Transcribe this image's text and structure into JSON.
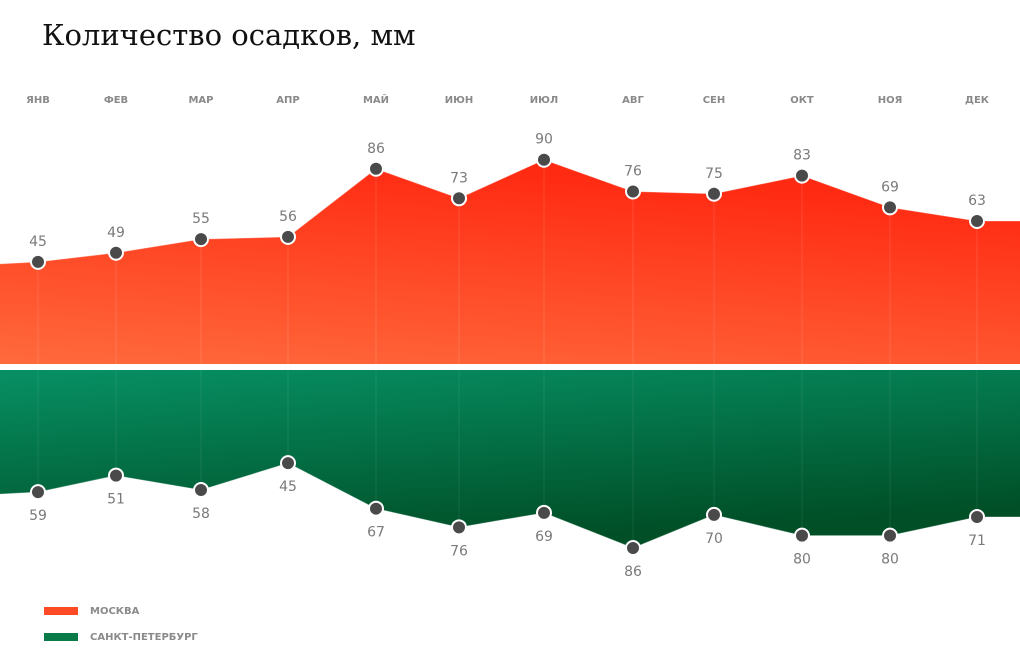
{
  "title": "Количество осадков, мм",
  "chart_data": {
    "type": "area",
    "categories": [
      "ЯНВ",
      "ФЕВ",
      "МАР",
      "АПР",
      "МАЙ",
      "ИЮН",
      "ИЮЛ",
      "АВГ",
      "СЕН",
      "ОКТ",
      "НОЯ",
      "ДЕК"
    ],
    "series": [
      {
        "name": "МОСКВА",
        "values": [
          45,
          49,
          55,
          56,
          86,
          73,
          90,
          76,
          75,
          83,
          69,
          63
        ],
        "color": "#ff3b1f",
        "direction": "up"
      },
      {
        "name": "САНКТ-ПЕТЕРБУРГ",
        "values": [
          59,
          51,
          58,
          45,
          67,
          76,
          69,
          86,
          70,
          80,
          80,
          71
        ],
        "color": "#0a8a55",
        "direction": "down"
      }
    ],
    "ylim": [
      0,
      100
    ],
    "grid": false,
    "legend": "bottom-left"
  }
}
